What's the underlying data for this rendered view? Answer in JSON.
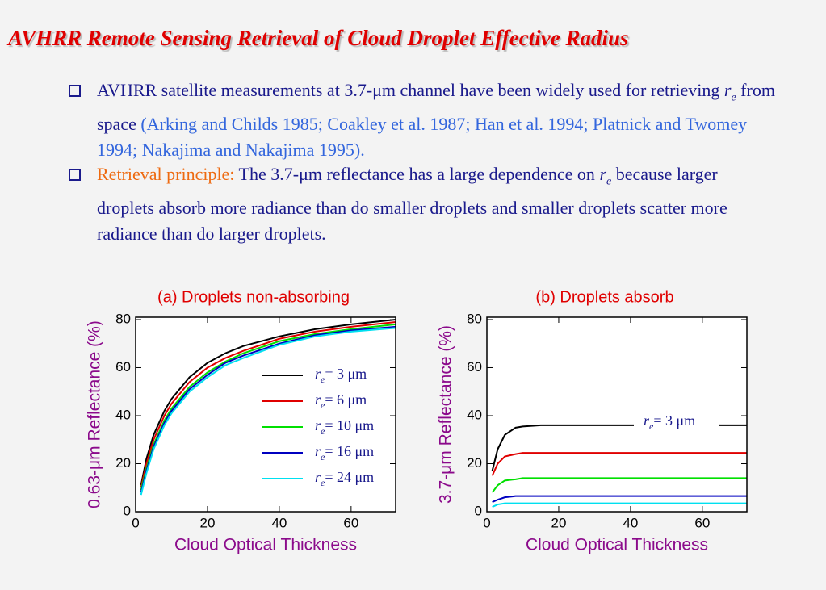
{
  "title": "AVHRR Remote Sensing Retrieval of Cloud Droplet Effective Radius",
  "bullets": [
    {
      "parts": [
        "AVHRR satellite measurements at 3.7-μm channel have been widely used for retrieving ",
        "r",
        "e",
        " from space ",
        "(Arking and Childs 1985; Coakley et al. 1987; Han et al. 1994; Platnick and Twomey 1994; Nakajima and Nakajima 1995)."
      ]
    },
    {
      "parts": [
        "Retrieval principle:",
        " The 3.7-μm reflectance has a large dependence on ",
        "r",
        "e",
        " because larger droplets absorb more radiance than do smaller droplets and smaller droplets scatter more radiance than do larger droplets."
      ]
    }
  ],
  "chart_data": [
    {
      "type": "line",
      "title": "(a) Droplets non-absorbing",
      "xlabel": "Cloud Optical Thickness",
      "ylabel": "0.63-μm Reflectance (%)",
      "xlim": [
        0,
        72.4
      ],
      "ylim": [
        0,
        81
      ],
      "xticks": [
        0,
        20,
        40,
        60
      ],
      "yticks": [
        0,
        20,
        40,
        60,
        80
      ],
      "legend": "center-right",
      "legend_symbol": [
        "r",
        "e"
      ],
      "x": [
        1.5,
        3,
        5,
        8,
        10,
        15,
        20,
        25,
        30,
        40,
        50,
        60,
        72.4
      ],
      "series": [
        {
          "name": "= 3 μm",
          "color": "#000000",
          "values": [
            11,
            22,
            32,
            42,
            47,
            56,
            62,
            66,
            69,
            73,
            76,
            78,
            80
          ]
        },
        {
          "name": "= 6 μm",
          "color": "#e00000",
          "values": [
            10,
            20,
            30,
            40,
            45,
            54,
            60,
            64,
            67,
            72,
            75,
            77,
            79
          ]
        },
        {
          "name": "= 10 μm",
          "color": "#00e000",
          "values": [
            9,
            18,
            28,
            38,
            43,
            52,
            58,
            62.5,
            66,
            71,
            74,
            76,
            78
          ]
        },
        {
          "name": "= 16 μm",
          "color": "#0000c0",
          "values": [
            8,
            17,
            27,
            37,
            42,
            51,
            57,
            62,
            65,
            70,
            73.5,
            75.5,
            77
          ]
        },
        {
          "name": "= 24 μm",
          "color": "#00e0f0",
          "values": [
            7,
            16,
            26,
            36,
            41,
            50,
            56,
            61,
            64,
            69.5,
            73,
            75,
            76.5
          ]
        }
      ]
    },
    {
      "type": "line",
      "title": "(b) Droplets absorb",
      "xlabel": "Cloud Optical Thickness",
      "ylabel": "3.7-μm Reflectance (%)",
      "xlim": [
        0,
        72.4
      ],
      "ylim": [
        0,
        81
      ],
      "xticks": [
        0,
        20,
        40,
        60
      ],
      "yticks": [
        0,
        20,
        40,
        60,
        80
      ],
      "legend": "upper-right",
      "legend_frame": true,
      "legend_symbol": [
        "r",
        "e"
      ],
      "x": [
        1.5,
        3,
        5,
        8,
        10,
        15,
        72.4
      ],
      "series": [
        {
          "name": "= 3 μm",
          "color": "#000000",
          "values": [
            17,
            26,
            32,
            35,
            35.5,
            36,
            36
          ]
        },
        {
          "color": "#e00000",
          "values": [
            15,
            20,
            23,
            24,
            24.5,
            24.5,
            24.5
          ]
        },
        {
          "color": "#00e000",
          "values": [
            8,
            11,
            13,
            13.5,
            14,
            14,
            14
          ]
        },
        {
          "color": "#0000c0",
          "values": [
            4,
            5,
            6,
            6.5,
            6.5,
            6.5,
            6.5
          ]
        },
        {
          "color": "#00e0f0",
          "values": [
            2,
            3,
            3.5,
            3.5,
            3.5,
            3.5,
            3.5
          ]
        }
      ]
    }
  ]
}
